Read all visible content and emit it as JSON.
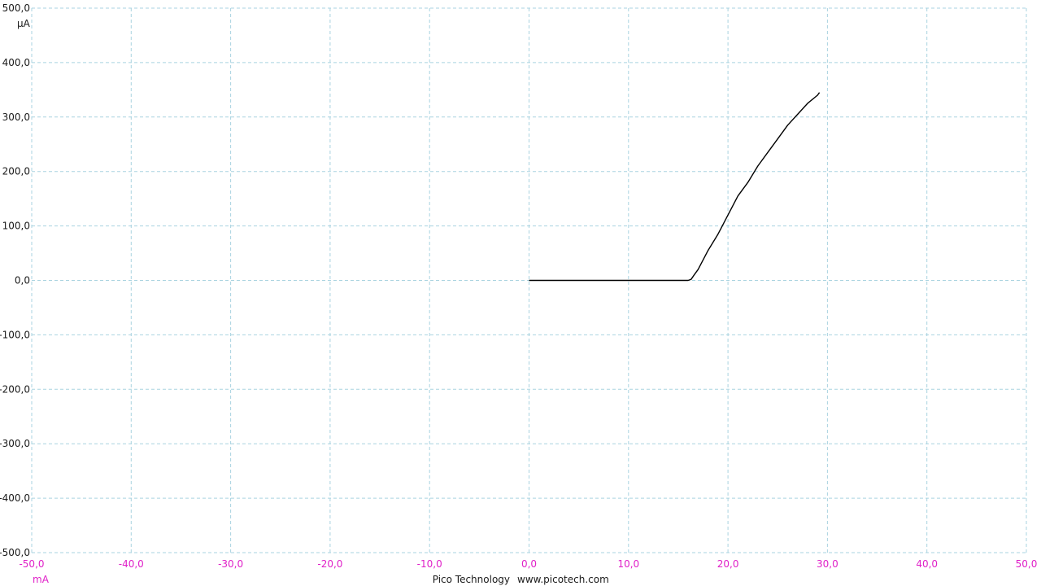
{
  "chart_data": {
    "type": "line",
    "xlim": [
      -50,
      50
    ],
    "ylim": [
      -500,
      500
    ],
    "x_ticks": [
      "-50,0",
      "-40,0",
      "-30,0",
      "-20,0",
      "-10,0",
      "0,0",
      "10,0",
      "20,0",
      "30,0",
      "40,0",
      "50,0"
    ],
    "y_ticks": [
      "500,0",
      "400,0",
      "300,0",
      "200,0",
      "100,0",
      "0,0",
      "-100,0",
      "-200,0",
      "-300,0",
      "-400,0",
      "-500,0"
    ],
    "x_unit": "mA",
    "y_unit": "µA",
    "grid": true,
    "colors": {
      "x_axis_text": "#e020c8",
      "y_axis_text": "#1a1a1a",
      "grid": "#a9d3e0",
      "trace": "#000000"
    },
    "series": [
      {
        "x": [
          0,
          2,
          4,
          6,
          8,
          10,
          12,
          14,
          16,
          16.3,
          16.6,
          17,
          18,
          19,
          20,
          21,
          22,
          23,
          24,
          25,
          26,
          27,
          28,
          29,
          29.2
        ],
        "y": [
          0,
          0,
          0,
          0,
          0,
          0,
          0,
          0,
          0,
          2,
          10,
          20,
          55,
          85,
          120,
          155,
          180,
          210,
          235,
          260,
          285,
          305,
          325,
          340,
          345
        ]
      }
    ]
  },
  "footer": {
    "brand": "Pico Technology",
    "url": "www.picotech.com"
  }
}
